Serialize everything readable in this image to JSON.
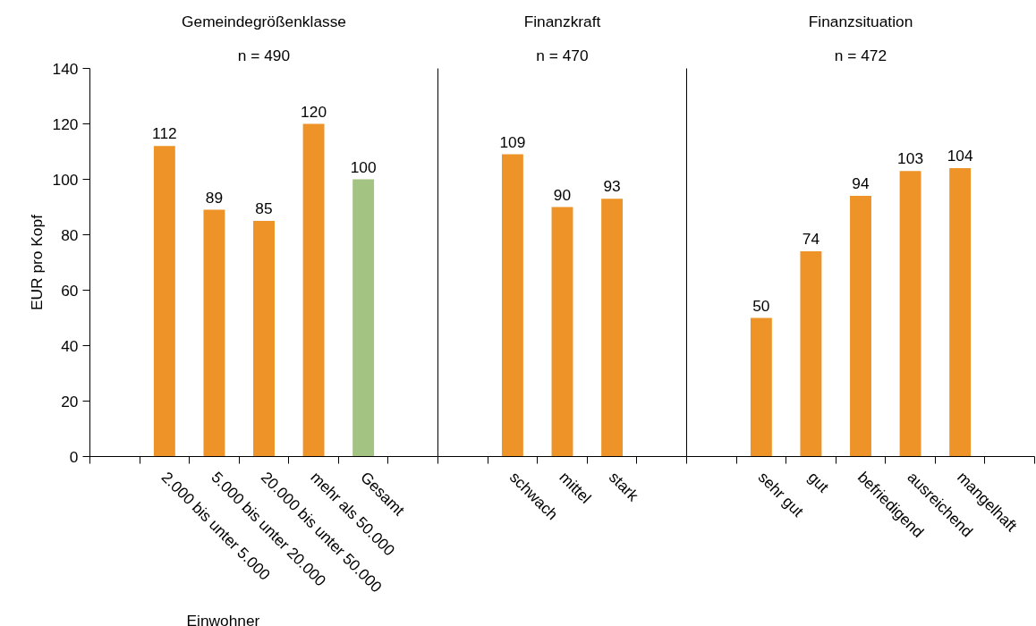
{
  "chart_data": [
    {
      "type": "bar",
      "title": "Gemeindegrößenklasse",
      "subtitle": "n = 490",
      "ylabel": "EUR pro Kopf",
      "ylim": [
        0,
        140
      ],
      "yticks": [
        0,
        20,
        40,
        60,
        80,
        100,
        120,
        140
      ],
      "data_labels": true,
      "annotations": [
        "Einwohner"
      ],
      "categories": [
        null,
        "2.000 bis unter 5.000",
        "5.000 bis unter 20.000",
        "20.000 bis unter 50.000",
        "mehr als 50.000",
        "Gesamt",
        null
      ],
      "values": [
        null,
        112,
        89,
        85,
        120,
        100,
        null
      ],
      "colors": [
        "#ee9327",
        "#ee9327",
        "#ee9327",
        "#ee9327",
        "#ee9327",
        "#a3c382",
        "#ee9327"
      ]
    },
    {
      "type": "bar",
      "title": "Finanzkraft",
      "subtitle": "n = 470",
      "ylim": [
        0,
        140
      ],
      "tick_labels": "x",
      "data_labels": true,
      "categories": [
        null,
        "schwach",
        "mittel",
        "stark",
        null
      ],
      "values": [
        null,
        109,
        90,
        93,
        null
      ],
      "colors": [
        "#ee9327",
        "#ee9327",
        "#ee9327",
        "#ee9327",
        "#ee9327"
      ]
    },
    {
      "type": "bar",
      "title": "Finanzsituation",
      "subtitle": "n = 472",
      "ylim": [
        0,
        140
      ],
      "tick_labels": "x",
      "data_labels": true,
      "categories": [
        null,
        "sehr gut",
        "gut",
        "befriedigend",
        "ausreichend",
        "mangelhaft",
        null
      ],
      "values": [
        null,
        50,
        74,
        94,
        103,
        104,
        null
      ],
      "colors": [
        "#ee9327",
        "#ee9327",
        "#ee9327",
        "#ee9327",
        "#ee9327",
        "#ee9327",
        "#ee9327"
      ]
    }
  ]
}
